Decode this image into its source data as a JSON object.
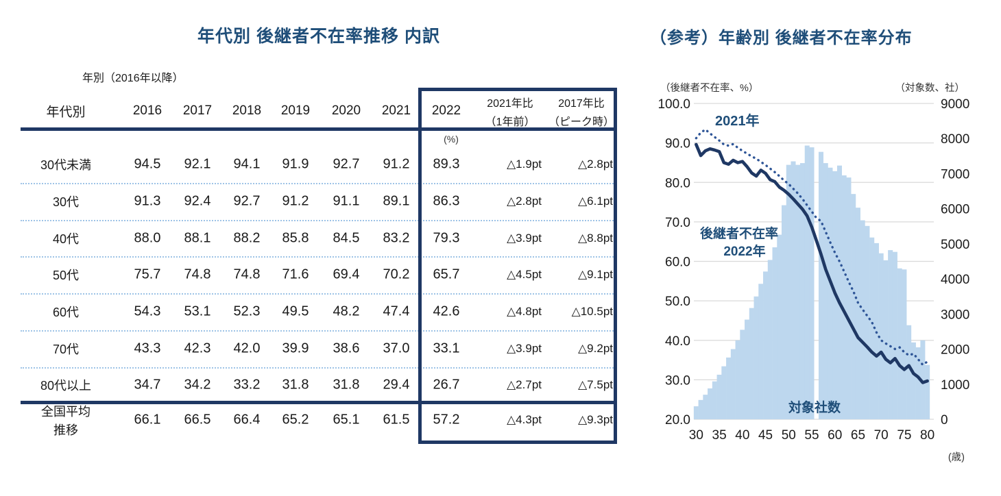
{
  "left_panel": {
    "title": "年代別 後継者不在率推移 内訳",
    "table": {
      "group_label": "年別（2016年以降）",
      "row_header": "年代別",
      "year_columns": [
        "2016",
        "2017",
        "2018",
        "2019",
        "2020",
        "2021",
        "2022"
      ],
      "compare_columns": [
        {
          "line1": "2021年比",
          "line2": "（1年前）"
        },
        {
          "line1": "2017年比",
          "line2": "（ピーク時）"
        }
      ],
      "unit_note": "(%)",
      "rows": [
        {
          "label": "30代未満",
          "values": [
            "94.5",
            "92.1",
            "94.1",
            "91.9",
            "92.7",
            "91.2",
            "89.3"
          ],
          "vs_2021": "△1.9pt",
          "vs_2017": "△2.8pt"
        },
        {
          "label": "30代",
          "values": [
            "91.3",
            "92.4",
            "92.7",
            "91.2",
            "91.1",
            "89.1",
            "86.3"
          ],
          "vs_2021": "△2.8pt",
          "vs_2017": "△6.1pt"
        },
        {
          "label": "40代",
          "values": [
            "88.0",
            "88.1",
            "88.2",
            "85.8",
            "84.5",
            "83.2",
            "79.3"
          ],
          "vs_2021": "△3.9pt",
          "vs_2017": "△8.8pt"
        },
        {
          "label": "50代",
          "values": [
            "75.7",
            "74.8",
            "74.8",
            "71.6",
            "69.4",
            "70.2",
            "65.7"
          ],
          "vs_2021": "△4.5pt",
          "vs_2017": "△9.1pt"
        },
        {
          "label": "60代",
          "values": [
            "54.3",
            "53.1",
            "52.3",
            "49.5",
            "48.2",
            "47.4",
            "42.6"
          ],
          "vs_2021": "△4.8pt",
          "vs_2017": "△10.5pt"
        },
        {
          "label": "70代",
          "values": [
            "43.3",
            "42.3",
            "42.0",
            "39.9",
            "38.6",
            "37.0",
            "33.1"
          ],
          "vs_2021": "△3.9pt",
          "vs_2017": "△9.2pt"
        },
        {
          "label": "80代以上",
          "values": [
            "34.7",
            "34.2",
            "33.2",
            "31.8",
            "31.8",
            "29.4",
            "26.7"
          ],
          "vs_2021": "△2.7pt",
          "vs_2017": "△7.5pt"
        }
      ],
      "summary_row": {
        "label_lines": [
          "全国平均",
          "推移"
        ],
        "values": [
          "66.1",
          "66.5",
          "66.4",
          "65.2",
          "65.1",
          "61.5",
          "57.2"
        ],
        "vs_2021": "△4.3pt",
        "vs_2017": "△9.3pt"
      }
    }
  },
  "right_panel": {
    "title": "（参考）年齢別 後継者不在率分布",
    "axis_caption_left": "（後継者不在率、%）",
    "axis_caption_right": "（対象数、社）",
    "x_unit": "(歳)",
    "labels": {
      "line_2021": "2021年",
      "rate_label": "後継者不在率",
      "line_2022": "2022年",
      "bar_label": "対象社数"
    }
  },
  "chart_data": {
    "type": "combo: bar + 2 lines, dual axis",
    "title": "（参考）年齢別 後継者不在率分布",
    "xlabel": "(歳)",
    "x_range": [
      30,
      80
    ],
    "x_ticks": [
      30,
      35,
      40,
      45,
      50,
      55,
      60,
      65,
      70,
      75,
      80
    ],
    "y_left": {
      "label": "（後継者不在率、%）",
      "range": [
        20,
        100
      ],
      "tick_step": 10,
      "grid": true
    },
    "y_right": {
      "label": "（対象数、社）",
      "range": [
        0,
        9000
      ],
      "tick_step": 1000
    },
    "ages": [
      30,
      31,
      32,
      33,
      34,
      35,
      36,
      37,
      38,
      39,
      40,
      41,
      42,
      43,
      44,
      45,
      46,
      47,
      48,
      49,
      50,
      51,
      52,
      53,
      54,
      55,
      56,
      57,
      58,
      59,
      60,
      61,
      62,
      63,
      64,
      65,
      66,
      67,
      68,
      69,
      70,
      71,
      72,
      73,
      74,
      75,
      76,
      77,
      78,
      79,
      80
    ],
    "series": [
      {
        "name": "後継者不在率 2022年",
        "type": "line",
        "style": "solid",
        "axis": "left",
        "color": "#1f3864",
        "values": [
          89.6,
          86.8,
          88.0,
          88.5,
          88.2,
          87.8,
          85.0,
          84.6,
          85.6,
          85.0,
          85.3,
          84.0,
          82.4,
          81.6,
          83.1,
          82.3,
          80.7,
          80.2,
          78.8,
          78.0,
          77.0,
          75.8,
          74.5,
          73.2,
          71.5,
          68.7,
          65.3,
          61.8,
          58.0,
          55.0,
          52.0,
          49.5,
          47.3,
          45.1,
          42.9,
          40.7,
          39.5,
          38.3,
          37.0,
          36.0,
          37.0,
          35.2,
          34.3,
          35.4,
          33.6,
          32.6,
          33.6,
          31.6,
          30.7,
          29.3,
          29.7
        ]
      },
      {
        "name": "2021年",
        "type": "line",
        "style": "dotted",
        "axis": "left",
        "color": "#2e5597",
        "values": [
          91.2,
          92.6,
          93.4,
          92.4,
          91.5,
          90.6,
          89.6,
          89.3,
          89.7,
          88.8,
          88.0,
          87.3,
          86.6,
          86.0,
          85.2,
          84.4,
          83.5,
          82.6,
          81.6,
          80.5,
          79.6,
          78.4,
          77.2,
          75.8,
          74.2,
          72.6,
          71.0,
          70.2,
          67.5,
          64.8,
          62.2,
          60.0,
          57.4,
          54.8,
          52.4,
          49.5,
          47.8,
          46.2,
          44.6,
          42.0,
          40.0,
          39.2,
          38.5,
          37.8,
          38.2,
          37.0,
          36.2,
          36.6,
          35.2,
          33.8,
          34.6
        ]
      },
      {
        "name": "対象社数",
        "type": "bar",
        "axis": "right",
        "color": "#bdd7ee",
        "values": [
          370,
          550,
          700,
          880,
          1080,
          1270,
          1510,
          1760,
          2000,
          2250,
          2550,
          2840,
          3170,
          3500,
          3860,
          4210,
          4540,
          4900,
          5260,
          6100,
          7250,
          7350,
          7250,
          7300,
          7800,
          7750,
          0,
          7620,
          7300,
          7170,
          7070,
          7230,
          6950,
          6890,
          6420,
          6030,
          5670,
          5510,
          5180,
          5020,
          4730,
          4530,
          4820,
          4770,
          4300,
          4270,
          2680,
          2190,
          2050,
          2250,
          1550
        ]
      }
    ],
    "legend_position": "annotations inside plot",
    "annotations": [
      "2021年",
      "後継者不在率",
      "2022年",
      "対象社数"
    ]
  },
  "colors": {
    "title_blue": "#1f4e79",
    "navy_rule": "#1f3864",
    "bar_fill": "#bdd7ee",
    "dotted_line": "#2e5597",
    "solid_line": "#1f3864",
    "grid": "#d9d9d9",
    "row_separator": "#9dc3e6"
  }
}
